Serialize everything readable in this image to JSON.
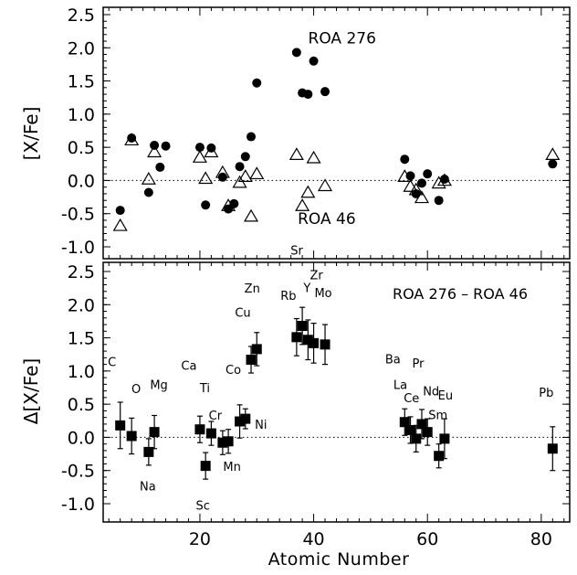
{
  "chart_data": [
    {
      "type": "scatter",
      "ylabel": "[X/Fe]",
      "xlim": [
        3,
        85
      ],
      "ylim": [
        -1.1,
        2.6
      ],
      "xticks": [
        20,
        40,
        60,
        80
      ],
      "yticks": [
        "-1.0",
        "-0.5",
        "0.0",
        "0.5",
        "1.0",
        "1.5",
        "2.0",
        "2.5"
      ],
      "reference_line": 0.0,
      "annotations": [
        {
          "text": "ROA 276",
          "x": 45,
          "y": 2.15
        },
        {
          "text": "ROA 46",
          "x": 42.3,
          "y": -0.57
        }
      ],
      "series": [
        {
          "marker": "filled-circle",
          "points": [
            {
              "x": 6,
              "y": -0.45
            },
            {
              "x": 8,
              "y": 0.64
            },
            {
              "x": 11,
              "y": -0.18
            },
            {
              "x": 12,
              "y": 0.53
            },
            {
              "x": 13,
              "y": 0.2
            },
            {
              "x": 14,
              "y": 0.52
            },
            {
              "x": 20,
              "y": 0.5
            },
            {
              "x": 21,
              "y": -0.37
            },
            {
              "x": 22,
              "y": 0.49
            },
            {
              "x": 24,
              "y": 0.05
            },
            {
              "x": 25,
              "y": -0.43
            },
            {
              "x": 26,
              "y": -0.35
            },
            {
              "x": 27,
              "y": 0.21
            },
            {
              "x": 28,
              "y": 0.36
            },
            {
              "x": 29,
              "y": 0.66
            },
            {
              "x": 30,
              "y": 1.47
            },
            {
              "x": 37,
              "y": 1.93
            },
            {
              "x": 38,
              "y": 1.32
            },
            {
              "x": 39,
              "y": 1.3
            },
            {
              "x": 40,
              "y": 1.8
            },
            {
              "x": 42,
              "y": 1.34
            },
            {
              "x": 56,
              "y": 0.32
            },
            {
              "x": 57,
              "y": 0.07
            },
            {
              "x": 58,
              "y": -0.2
            },
            {
              "x": 59,
              "y": -0.04
            },
            {
              "x": 60,
              "y": 0.1
            },
            {
              "x": 62,
              "y": -0.3
            },
            {
              "x": 63,
              "y": 0.02
            },
            {
              "x": 82,
              "y": 0.25
            }
          ]
        },
        {
          "marker": "open-triangle",
          "points": [
            {
              "x": 6,
              "y": -0.67
            },
            {
              "x": 8,
              "y": 0.62
            },
            {
              "x": 11,
              "y": 0.03
            },
            {
              "x": 12,
              "y": 0.44
            },
            {
              "x": 20,
              "y": 0.36
            },
            {
              "x": 21,
              "y": 0.04
            },
            {
              "x": 22,
              "y": 0.44
            },
            {
              "x": 24,
              "y": 0.13
            },
            {
              "x": 25,
              "y": -0.37
            },
            {
              "x": 27,
              "y": -0.02
            },
            {
              "x": 28,
              "y": 0.07
            },
            {
              "x": 29,
              "y": -0.53
            },
            {
              "x": 30,
              "y": 0.11
            },
            {
              "x": 37,
              "y": 0.4
            },
            {
              "x": 38,
              "y": -0.37
            },
            {
              "x": 39,
              "y": -0.17
            },
            {
              "x": 40,
              "y": 0.35
            },
            {
              "x": 42,
              "y": -0.07
            },
            {
              "x": 56,
              "y": 0.07
            },
            {
              "x": 57,
              "y": -0.08
            },
            {
              "x": 58,
              "y": -0.13
            },
            {
              "x": 59,
              "y": -0.25
            },
            {
              "x": 62,
              "y": -0.03
            },
            {
              "x": 63,
              "y": 0.01
            },
            {
              "x": 82,
              "y": 0.4
            }
          ]
        }
      ]
    },
    {
      "type": "scatter",
      "title": "ROA 276 – ROA 46",
      "xlabel": "Atomic Number",
      "ylabel": "Δ[X/Fe]",
      "xlim": [
        3,
        85
      ],
      "ylim": [
        -1.1,
        2.6
      ],
      "xticks": [
        20,
        40,
        60,
        80
      ],
      "yticks": [
        "-1.0",
        "-0.5",
        "0.0",
        "0.5",
        "1.0",
        "1.5",
        "2.0",
        "2.5"
      ],
      "reference_line": 0.0,
      "series": [
        {
          "marker": "filled-square-errorbar",
          "points": [
            {
              "x": 6,
              "y": 0.18,
              "err": 0.35,
              "label": "C"
            },
            {
              "x": 8,
              "y": 0.02,
              "err": 0.27,
              "label": "O"
            },
            {
              "x": 11,
              "y": -0.22,
              "err": 0.2,
              "label": "Na"
            },
            {
              "x": 12,
              "y": 0.08,
              "err": 0.25,
              "label": "Mg"
            },
            {
              "x": 20,
              "y": 0.12,
              "err": 0.2,
              "label": "Ca"
            },
            {
              "x": 21,
              "y": -0.43,
              "err": 0.2,
              "label": "Sc"
            },
            {
              "x": 22,
              "y": 0.06,
              "err": 0.18,
              "label": "Ti"
            },
            {
              "x": 24,
              "y": -0.08,
              "err": 0.18,
              "label": "Cr"
            },
            {
              "x": 25,
              "y": -0.06,
              "err": 0.18,
              "label": "Mn"
            },
            {
              "x": 27,
              "y": 0.24,
              "err": 0.25,
              "label": "Co"
            },
            {
              "x": 28,
              "y": 0.28,
              "err": 0.15,
              "label": "Ni"
            },
            {
              "x": 29,
              "y": 1.17,
              "err": 0.2,
              "label": "Cu"
            },
            {
              "x": 30,
              "y": 1.33,
              "err": 0.25,
              "label": "Zn"
            },
            {
              "x": 37,
              "y": 1.51,
              "err": 0.28,
              "label": "Rb"
            },
            {
              "x": 38,
              "y": 1.68,
              "err": 0.28,
              "label": "Sr"
            },
            {
              "x": 39,
              "y": 1.47,
              "err": 0.3,
              "label": "Y"
            },
            {
              "x": 40,
              "y": 1.42,
              "err": 0.3,
              "label": "Zr"
            },
            {
              "x": 42,
              "y": 1.4,
              "err": 0.3,
              "label": "Mo"
            },
            {
              "x": 56,
              "y": 0.23,
              "err": 0.2,
              "label": "Ba"
            },
            {
              "x": 57,
              "y": 0.11,
              "err": 0.2,
              "label": "La"
            },
            {
              "x": 58,
              "y": -0.02,
              "err": 0.2,
              "label": "Ce"
            },
            {
              "x": 59,
              "y": 0.2,
              "err": 0.22,
              "label": "Pr"
            },
            {
              "x": 60,
              "y": 0.08,
              "err": 0.2,
              "label": "Nd"
            },
            {
              "x": 62,
              "y": -0.28,
              "err": 0.18,
              "label": "Sm"
            },
            {
              "x": 63,
              "y": -0.02,
              "err": 0.3,
              "label": "Eu"
            },
            {
              "x": 82,
              "y": -0.17,
              "err": 0.33,
              "label": "Pb"
            }
          ]
        }
      ]
    }
  ]
}
